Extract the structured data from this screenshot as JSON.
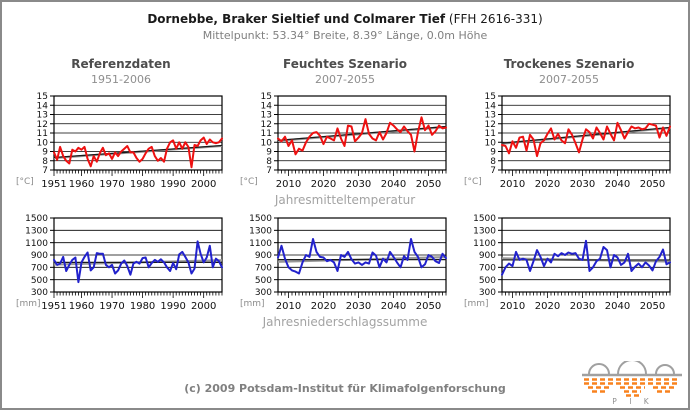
{
  "header": {
    "title_bold": "Dornebbe, Braker Sieltief und Colmarer Tief",
    "title_paren": "(FFH 2616-331)",
    "subtitle": "Mittelpunkt: 53.34° Breite, 8.39° Länge, 0.0m Höhe"
  },
  "columns": [
    {
      "title": "Referenzdaten",
      "period": "1951-2006"
    },
    {
      "title": "Feuchtes Szenario",
      "period": "2007-2055"
    },
    {
      "title": "Trockenes Szenario",
      "period": "2007-2055"
    }
  ],
  "row_labels": {
    "temperature": "Jahresmitteltemperatur",
    "precipitation": "Jahresniederschlagssumme"
  },
  "footer": {
    "copyright": "(c) 2009 Potsdam-Institut für Klimafolgenforschung",
    "logo_text": "P I K"
  },
  "colors": {
    "temperature_line": "#ee1111",
    "precipitation_line": "#2222cc",
    "trend_gray": "#999999",
    "trend_black": "#1a1a1a",
    "axis": "#000000",
    "unit_text": "#8c8c8c",
    "logo_orange": "#f8821e",
    "logo_gray": "#a0a0a0"
  },
  "chart_data": [
    {
      "type": "line",
      "row": "Jahresmitteltemperatur",
      "column": "Referenzdaten",
      "x_start": 1951,
      "x_end": 2006,
      "x_tick_labels": [
        1951,
        1960,
        1970,
        1980,
        1990,
        2000
      ],
      "ylim": [
        7,
        15
      ],
      "y_ticks": [
        7,
        8,
        9,
        10,
        11,
        12,
        13,
        14,
        15
      ],
      "unit": "[°C]",
      "color": "#ee1111",
      "trend_gray": {
        "start": 8.3,
        "end": 9.6
      },
      "trend_black": {
        "start": 8.35,
        "end": 9.65
      },
      "values": [
        8.9,
        8.1,
        9.5,
        8.5,
        8.0,
        7.7,
        9.2,
        9.0,
        9.4,
        9.2,
        9.5,
        8.2,
        7.4,
        8.5,
        7.9,
        8.8,
        9.4,
        8.6,
        8.8,
        8.2,
        8.9,
        8.5,
        9.0,
        9.3,
        9.6,
        8.9,
        8.9,
        8.3,
        7.9,
        8.2,
        8.8,
        9.3,
        9.5,
        8.5,
        8.0,
        8.3,
        7.9,
        9.3,
        10.0,
        10.2,
        9.3,
        10.0,
        9.3,
        10.0,
        9.5,
        7.3,
        9.7,
        9.6,
        10.2,
        10.5,
        9.8,
        10.3,
        10.0,
        9.9,
        10.0,
        10.4
      ]
    },
    {
      "type": "line",
      "row": "Jahresmitteltemperatur",
      "column": "Feuchtes Szenario",
      "x_start": 2007,
      "x_end": 2055,
      "x_tick_labels": [
        2010,
        2020,
        2030,
        2040,
        2050
      ],
      "ylim": [
        7,
        15
      ],
      "y_ticks": [
        7,
        8,
        9,
        10,
        11,
        12,
        13,
        14,
        15
      ],
      "unit": "[°C]",
      "color": "#ee1111",
      "trend_gray": {
        "start": 10.15,
        "end": 11.65
      },
      "trend_black": {
        "start": 10.2,
        "end": 11.7
      },
      "values": [
        10.4,
        10.1,
        10.6,
        9.6,
        10.2,
        8.7,
        9.3,
        9.1,
        10.0,
        10.6,
        11.0,
        11.1,
        10.7,
        9.8,
        10.6,
        10.4,
        10.2,
        11.5,
        10.4,
        9.6,
        11.8,
        11.7,
        10.1,
        10.5,
        11.0,
        12.5,
        10.9,
        10.4,
        10.2,
        11.1,
        10.3,
        11.0,
        12.1,
        11.8,
        11.4,
        11.1,
        11.7,
        11.2,
        10.8,
        9.0,
        11.1,
        12.7,
        11.3,
        11.8,
        10.8,
        11.2,
        11.8,
        11.5,
        11.6
      ]
    },
    {
      "type": "line",
      "row": "Jahresmitteltemperatur",
      "column": "Trockenes Szenario",
      "x_start": 2007,
      "x_end": 2055,
      "x_tick_labels": [
        2010,
        2020,
        2030,
        2040,
        2050
      ],
      "ylim": [
        7,
        15
      ],
      "y_ticks": [
        7,
        8,
        9,
        10,
        11,
        12,
        13,
        14,
        15
      ],
      "unit": "[°C]",
      "color": "#ee1111",
      "trend_gray": {
        "start": 9.85,
        "end": 11.55
      },
      "trend_black": {
        "start": 9.9,
        "end": 11.6
      },
      "values": [
        9.7,
        9.6,
        8.8,
        10.1,
        9.4,
        10.5,
        10.6,
        9.1,
        10.8,
        10.3,
        8.5,
        9.9,
        10.2,
        10.9,
        11.5,
        10.3,
        10.9,
        10.2,
        9.9,
        11.4,
        10.8,
        9.9,
        8.9,
        10.3,
        11.4,
        11.1,
        10.4,
        11.6,
        11.0,
        10.3,
        11.7,
        10.9,
        10.2,
        12.1,
        11.3,
        10.4,
        11.1,
        11.7,
        11.5,
        11.6,
        11.4,
        11.5,
        12.0,
        11.9,
        11.8,
        10.5,
        11.6,
        10.7,
        11.7
      ]
    },
    {
      "type": "line",
      "row": "Jahresniederschlagssumme",
      "column": "Referenzdaten",
      "x_start": 1951,
      "x_end": 2006,
      "x_tick_labels": [
        1951,
        1960,
        1970,
        1980,
        1990,
        2000
      ],
      "ylim": [
        300,
        1500
      ],
      "y_ticks": [
        300,
        500,
        700,
        900,
        1100,
        1300,
        1500
      ],
      "unit": "[mm]",
      "color": "#2222cc",
      "trend_gray": {
        "start": 745,
        "end": 815
      },
      "trend_black": {
        "start": 780,
        "end": 780
      },
      "values": [
        820,
        740,
        760,
        870,
        640,
        740,
        820,
        860,
        460,
        780,
        870,
        940,
        650,
        700,
        930,
        920,
        920,
        740,
        700,
        740,
        600,
        650,
        760,
        810,
        720,
        580,
        760,
        790,
        760,
        850,
        860,
        700,
        770,
        820,
        790,
        830,
        780,
        700,
        640,
        770,
        670,
        910,
        950,
        870,
        780,
        600,
        680,
        1120,
        920,
        780,
        860,
        1050,
        700,
        840,
        800,
        700
      ]
    },
    {
      "type": "line",
      "row": "Jahresniederschlagssumme",
      "column": "Feuchtes Szenario",
      "x_start": 2007,
      "x_end": 2055,
      "x_tick_labels": [
        2010,
        2020,
        2030,
        2040,
        2050
      ],
      "ylim": [
        300,
        1500
      ],
      "y_ticks": [
        300,
        500,
        700,
        900,
        1100,
        1300,
        1500
      ],
      "unit": "[mm]",
      "color": "#2222cc",
      "trend_gray": {
        "start": 790,
        "end": 865
      },
      "trend_black": {
        "start": 825,
        "end": 825
      },
      "values": [
        860,
        1050,
        840,
        700,
        650,
        630,
        600,
        780,
        900,
        870,
        1160,
        950,
        870,
        860,
        800,
        820,
        780,
        640,
        900,
        870,
        950,
        830,
        760,
        780,
        740,
        780,
        760,
        940,
        890,
        700,
        840,
        780,
        950,
        870,
        780,
        700,
        880,
        820,
        1160,
        950,
        870,
        700,
        750,
        900,
        870,
        800,
        770,
        920,
        850
      ]
    },
    {
      "type": "line",
      "row": "Jahresniederschlagssumme",
      "column": "Trockenes Szenario",
      "x_start": 2007,
      "x_end": 2055,
      "x_tick_labels": [
        2010,
        2020,
        2030,
        2040,
        2050
      ],
      "ylim": [
        300,
        1500
      ],
      "y_ticks": [
        300,
        500,
        700,
        900,
        1100,
        1300,
        1500
      ],
      "unit": "[mm]",
      "color": "#2222cc",
      "trend_gray": {
        "start": 845,
        "end": 795
      },
      "trend_black": {
        "start": 820,
        "end": 820
      },
      "values": [
        580,
        700,
        760,
        720,
        950,
        820,
        840,
        820,
        640,
        800,
        980,
        870,
        720,
        840,
        780,
        920,
        880,
        930,
        900,
        940,
        920,
        930,
        840,
        820,
        1130,
        640,
        700,
        800,
        840,
        1030,
        980,
        700,
        900,
        860,
        740,
        780,
        920,
        640,
        710,
        760,
        700,
        780,
        730,
        650,
        800,
        870,
        990,
        750,
        780
      ]
    }
  ]
}
